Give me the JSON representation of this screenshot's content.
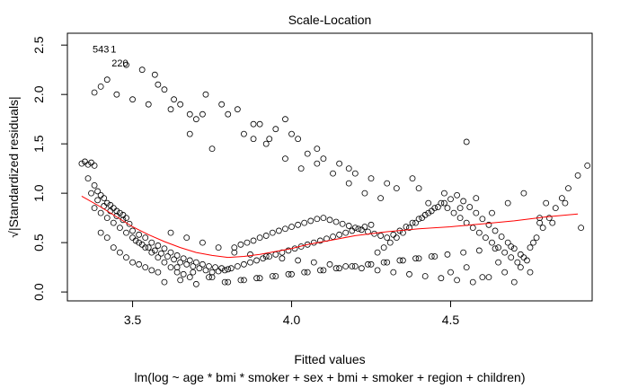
{
  "chart_data": {
    "type": "scatter",
    "title": "Scale-Location",
    "xlabel": "Fitted values",
    "subtitle": "lm(log ~ age * bmi * smoker + sex + bmi + smoker + region + children)",
    "ylabel": "√|Standardized residuals|",
    "xlim": [
      3.295,
      4.945
    ],
    "ylim": [
      -0.09,
      2.62
    ],
    "x_ticks": [
      3.5,
      4.0,
      4.5
    ],
    "x_tick_labels": [
      "3.5",
      "4.0",
      "4.5"
    ],
    "y_ticks": [
      0.0,
      0.5,
      1.0,
      1.5,
      2.0,
      2.5
    ],
    "y_tick_labels": [
      "0.0",
      "0.5",
      "1.0",
      "1.5",
      "2.0",
      "2.5"
    ],
    "point_color": "#000000",
    "smoother_color": "#ff0000",
    "annotations": [
      {
        "label": "543",
        "x": 3.4,
        "y": 2.46
      },
      {
        "label": "1",
        "x": 3.44,
        "y": 2.46
      },
      {
        "label": "220",
        "x": 3.46,
        "y": 2.32
      }
    ],
    "smoother": {
      "x": [
        3.34,
        3.4,
        3.45,
        3.5,
        3.55,
        3.6,
        3.65,
        3.7,
        3.75,
        3.8,
        3.85,
        3.9,
        3.95,
        4.0,
        4.05,
        4.1,
        4.15,
        4.2,
        4.3,
        4.4,
        4.5,
        4.6,
        4.7,
        4.8,
        4.9
      ],
      "y": [
        0.97,
        0.86,
        0.76,
        0.66,
        0.58,
        0.51,
        0.45,
        0.4,
        0.37,
        0.35,
        0.36,
        0.38,
        0.41,
        0.44,
        0.48,
        0.51,
        0.54,
        0.57,
        0.61,
        0.64,
        0.66,
        0.69,
        0.72,
        0.76,
        0.79
      ]
    },
    "series": [
      {
        "x": [
          3.34,
          3.35,
          3.36,
          3.37,
          3.38,
          3.36,
          3.38,
          3.39,
          3.4,
          3.41,
          3.42,
          3.43,
          3.44,
          3.45,
          3.46,
          3.47,
          3.48,
          3.37,
          3.39,
          3.41,
          3.43,
          3.45,
          3.47,
          3.49,
          3.5,
          3.52,
          3.54,
          3.56,
          3.58,
          3.6,
          3.62,
          3.64,
          3.66,
          3.68,
          3.7,
          3.72,
          3.74,
          3.76,
          3.78,
          3.8,
          3.51,
          3.53,
          3.55,
          3.57,
          3.59,
          3.61,
          3.63,
          3.65,
          3.67,
          3.69,
          3.71,
          3.73,
          3.75,
          3.77,
          3.79,
          3.81,
          3.83,
          3.85,
          3.87,
          3.89,
          3.91,
          3.93,
          3.95,
          3.97,
          3.99,
          4.01,
          4.03,
          4.05,
          4.07,
          4.09,
          4.11,
          4.13,
          4.15,
          4.17,
          4.19,
          4.21,
          4.23,
          4.25,
          3.82,
          3.84,
          3.86,
          3.88,
          3.9,
          3.92,
          3.94,
          3.96,
          3.98,
          4.0,
          4.02,
          4.04,
          4.06,
          4.08,
          4.1,
          4.12,
          4.14,
          4.16,
          4.18,
          4.2,
          4.22,
          4.24,
          4.26,
          4.28,
          4.3,
          4.32,
          4.34,
          4.36,
          4.38,
          4.4,
          4.42,
          4.44,
          4.46,
          4.48,
          4.5,
          4.52,
          4.54,
          4.56,
          4.58,
          4.6,
          4.62,
          4.64,
          4.66,
          4.68,
          4.7,
          4.72,
          4.74,
          4.76,
          4.78,
          4.8,
          4.27,
          4.29,
          4.31,
          4.33,
          4.35,
          4.37,
          4.39,
          4.41,
          4.43,
          4.45,
          4.47,
          4.49,
          4.51,
          4.53,
          4.55,
          4.57,
          4.59,
          4.61,
          4.63,
          4.65,
          4.67,
          4.69,
          4.71,
          4.73,
          4.75,
          4.77,
          4.79,
          4.81,
          4.83,
          4.85,
          4.87,
          4.9,
          4.93,
          3.6,
          3.65,
          3.7,
          3.75,
          3.8,
          3.85,
          3.9,
          3.95,
          4.0,
          4.05,
          4.1,
          4.15,
          4.2,
          4.25,
          4.3,
          4.35,
          4.4,
          4.45,
          4.5,
          4.55,
          4.6,
          4.65,
          4.7,
          4.75,
          3.62,
          3.67,
          3.72,
          3.77,
          3.82,
          3.87,
          3.92,
          3.97,
          4.02,
          4.07,
          4.12,
          4.17,
          4.22,
          4.27,
          4.32,
          4.37,
          4.42,
          4.47,
          4.52,
          4.57,
          4.62,
          4.67,
          4.72,
          3.64,
          3.69,
          3.74,
          3.79,
          3.84,
          3.89,
          3.94,
          3.99,
          4.04,
          4.09,
          4.14,
          4.19,
          4.24,
          4.29,
          4.34,
          4.39,
          4.44,
          4.49,
          4.54,
          4.59,
          4.64,
          4.69,
          3.38,
          3.4,
          3.42,
          3.44,
          3.46,
          3.48,
          3.5,
          3.52,
          3.54,
          3.56,
          3.58,
          3.6,
          3.62,
          3.64,
          3.66,
          3.68,
          3.4,
          3.42,
          3.44,
          3.46,
          3.48,
          3.5,
          3.52,
          3.54,
          3.56,
          3.58,
          3.38,
          3.4,
          3.45,
          3.5,
          3.55,
          3.57,
          3.6,
          3.62,
          3.65,
          3.68,
          3.7,
          3.72,
          3.75,
          3.78,
          3.8,
          3.85,
          3.88,
          3.9,
          3.92,
          3.95,
          3.98,
          4.0,
          4.02,
          4.05,
          4.08,
          4.1,
          4.15,
          4.18,
          4.2,
          4.25,
          4.3,
          4.4,
          4.55,
          3.42,
          3.48,
          3.53,
          3.58,
          3.63,
          3.68,
          3.73,
          3.83,
          3.88,
          3.93,
          3.98,
          4.03,
          4.08,
          4.13,
          4.18,
          4.23,
          4.28,
          4.33,
          4.38,
          4.43,
          4.48,
          4.53,
          4.58,
          4.63,
          4.68,
          4.73,
          4.78,
          4.82,
          4.86,
          4.91
        ],
        "y": [
          1.3,
          1.32,
          1.29,
          1.31,
          1.28,
          1.15,
          1.08,
          1.02,
          0.98,
          0.95,
          0.9,
          0.88,
          0.85,
          0.82,
          0.8,
          0.78,
          0.75,
          1.0,
          0.93,
          0.87,
          0.82,
          0.77,
          0.73,
          0.69,
          0.62,
          0.58,
          0.55,
          0.5,
          0.47,
          0.44,
          0.4,
          0.37,
          0.34,
          0.32,
          0.3,
          0.28,
          0.26,
          0.25,
          0.24,
          0.23,
          0.52,
          0.48,
          0.45,
          0.42,
          0.39,
          0.36,
          0.33,
          0.3,
          0.28,
          0.26,
          0.24,
          0.22,
          0.2,
          0.21,
          0.22,
          0.24,
          0.26,
          0.28,
          0.3,
          0.32,
          0.34,
          0.36,
          0.38,
          0.4,
          0.42,
          0.44,
          0.46,
          0.48,
          0.5,
          0.52,
          0.54,
          0.56,
          0.58,
          0.6,
          0.62,
          0.64,
          0.66,
          0.68,
          0.45,
          0.48,
          0.5,
          0.52,
          0.55,
          0.57,
          0.6,
          0.62,
          0.64,
          0.66,
          0.68,
          0.7,
          0.72,
          0.74,
          0.75,
          0.73,
          0.71,
          0.69,
          0.67,
          0.65,
          0.63,
          0.61,
          0.59,
          0.57,
          0.55,
          0.58,
          0.62,
          0.66,
          0.7,
          0.74,
          0.78,
          0.82,
          0.86,
          0.9,
          0.94,
          0.98,
          0.92,
          0.86,
          0.8,
          0.74,
          0.68,
          0.62,
          0.56,
          0.5,
          0.44,
          0.38,
          0.32,
          0.5,
          0.7,
          0.9,
          0.4,
          0.45,
          0.5,
          0.55,
          0.6,
          0.65,
          0.7,
          0.75,
          0.8,
          0.85,
          0.9,
          0.85,
          0.8,
          0.75,
          0.7,
          0.65,
          0.6,
          0.55,
          0.5,
          0.45,
          0.4,
          0.35,
          0.3,
          0.35,
          0.45,
          0.55,
          0.65,
          0.75,
          0.85,
          0.95,
          1.05,
          1.18,
          1.28,
          0.1,
          0.12,
          0.08,
          0.15,
          0.1,
          0.12,
          0.14,
          0.16,
          0.18,
          0.2,
          0.22,
          0.24,
          0.26,
          0.28,
          0.3,
          0.32,
          0.34,
          0.36,
          0.2,
          0.25,
          0.15,
          0.3,
          0.1,
          0.2,
          0.6,
          0.55,
          0.5,
          0.45,
          0.4,
          0.38,
          0.36,
          0.34,
          0.32,
          0.3,
          0.28,
          0.26,
          0.24,
          0.22,
          0.2,
          0.18,
          0.16,
          0.14,
          0.12,
          0.1,
          0.15,
          0.2,
          0.25,
          0.25,
          0.2,
          0.15,
          0.1,
          0.12,
          0.14,
          0.16,
          0.18,
          0.2,
          0.22,
          0.24,
          0.26,
          0.28,
          0.3,
          0.32,
          0.34,
          0.36,
          0.38,
          0.4,
          0.42,
          0.44,
          0.46,
          0.85,
          0.8,
          0.75,
          0.7,
          0.65,
          0.6,
          0.55,
          0.5,
          0.45,
          0.4,
          0.35,
          0.3,
          0.25,
          0.2,
          0.18,
          0.15,
          0.6,
          0.55,
          0.45,
          0.4,
          0.35,
          0.3,
          0.28,
          0.25,
          0.22,
          0.2,
          2.02,
          2.08,
          2.0,
          1.95,
          1.9,
          2.2,
          2.05,
          1.85,
          1.9,
          1.6,
          1.75,
          1.8,
          1.45,
          1.9,
          1.8,
          1.6,
          1.55,
          1.7,
          1.5,
          1.65,
          1.75,
          1.6,
          1.55,
          1.4,
          1.45,
          1.35,
          1.3,
          1.25,
          1.2,
          1.15,
          1.1,
          1.05,
          1.52,
          2.15,
          2.3,
          2.25,
          2.1,
          1.95,
          1.8,
          2.0,
          1.85,
          1.7,
          1.55,
          1.35,
          1.25,
          1.3,
          1.2,
          1.1,
          1.0,
          0.95,
          1.05,
          1.15,
          0.9,
          1.0,
          0.85,
          0.95,
          0.8,
          0.9,
          1.0,
          0.75,
          0.7,
          0.9,
          0.65
        ]
      }
    ]
  }
}
